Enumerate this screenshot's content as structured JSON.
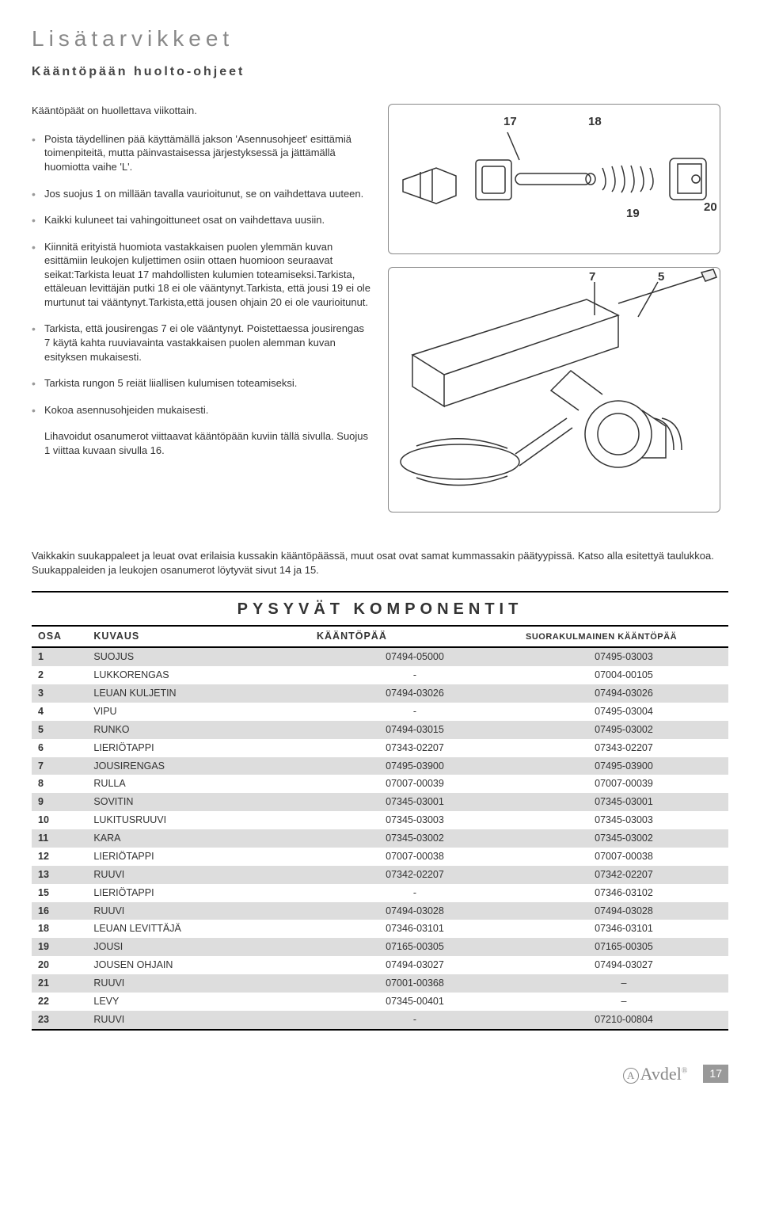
{
  "heading": "Lisätarvikkeet",
  "subheading": "Kääntöpään huolto-ohjeet",
  "intro": "Kääntöpäät on huollettava viikottain.",
  "bullets": [
    "Poista täydellinen pää käyttämällä jakson 'Asennusohjeet' esittämiä toimenpiteitä, mutta päinvastaisessa järjestyksessä ja jättämällä huomiotta vaihe 'L'.",
    "Jos suojus 1 on millään tavalla vaurioitunut, se on vaihdettava uuteen.",
    "Kaikki kuluneet tai vahingoittuneet osat on vaihdettava uusiin.",
    "Kiinnitä erityistä huomiota vastakkaisen puolen ylemmän kuvan esittämiin leukojen kuljettimen osiin ottaen huomioon seuraavat seikat:Tarkista leuat 17 mahdollisten kulumien toteamiseksi.Tarkista, ettäleuan levittäjän putki 18 ei ole vääntynyt.Tarkista, että jousi 19 ei ole murtunut tai vääntynyt.Tarkista,että jousen ohjain 20 ei ole vaurioitunut.",
    "Tarkista, että jousirengas 7 ei ole vääntynyt. Poistettaessa jousirengas 7 käytä kahta ruuviavainta vastakkaisen puolen alemman kuvan esityksen mukaisesti.",
    "Tarkista rungon 5 reiät liiallisen kulumisen toteamiseksi.",
    "Kokoa asennusohjeiden mukaisesti."
  ],
  "note": "Lihavoidut osanumerot viittaavat kääntöpään kuviin tällä sivulla. Suojus 1 viittaa kuvaan sivulla 16.",
  "below_text": "Vaikkakin suukappaleet ja leuat ovat erilaisia kussakin kääntöpäässä, muut osat ovat samat kummassakin päätyypissä. Katso alla esitettyä taulukkoa. Suukappaleiden ja leukojen osanumerot löytyvät sivut 14 ja 15.",
  "diagram1": {
    "l17": "17",
    "l18": "18",
    "l19": "19",
    "l20": "20"
  },
  "diagram2": {
    "l7": "7",
    "l5": "5"
  },
  "table": {
    "title": "PYSYVÄT KOMPONENTIT",
    "headers": {
      "osa": "OSA",
      "kuvaus": "KUVAUS",
      "a": "KÄÄNTÖPÄÄ",
      "b": "SUORAKULMAINEN KÄÄNTÖPÄÄ"
    },
    "rows": [
      {
        "osa": "1",
        "kuvaus": "SUOJUS",
        "a": "07494-05000",
        "b": "07495-03003"
      },
      {
        "osa": "2",
        "kuvaus": "LUKKORENGAS",
        "a": "-",
        "b": "07004-00105"
      },
      {
        "osa": "3",
        "kuvaus": "LEUAN KULJETIN",
        "a": "07494-03026",
        "b": "07494-03026"
      },
      {
        "osa": "4",
        "kuvaus": "VIPU",
        "a": "-",
        "b": "07495-03004"
      },
      {
        "osa": "5",
        "kuvaus": "RUNKO",
        "a": "07494-03015",
        "b": "07495-03002"
      },
      {
        "osa": "6",
        "kuvaus": "LIERIÖTAPPI",
        "a": "07343-02207",
        "b": "07343-02207"
      },
      {
        "osa": "7",
        "kuvaus": "JOUSIRENGAS",
        "a": "07495-03900",
        "b": "07495-03900"
      },
      {
        "osa": "8",
        "kuvaus": "RULLA",
        "a": "07007-00039",
        "b": "07007-00039"
      },
      {
        "osa": "9",
        "kuvaus": "SOVITIN",
        "a": "07345-03001",
        "b": "07345-03001"
      },
      {
        "osa": "10",
        "kuvaus": "LUKITUSRUUVI",
        "a": "07345-03003",
        "b": "07345-03003"
      },
      {
        "osa": "11",
        "kuvaus": "KARA",
        "a": "07345-03002",
        "b": "07345-03002"
      },
      {
        "osa": "12",
        "kuvaus": "LIERIÖTAPPI",
        "a": "07007-00038",
        "b": "07007-00038"
      },
      {
        "osa": "13",
        "kuvaus": "RUUVI",
        "a": "07342-02207",
        "b": "07342-02207"
      },
      {
        "osa": "15",
        "kuvaus": "LIERIÖTAPPI",
        "a": "-",
        "b": "07346-03102"
      },
      {
        "osa": "16",
        "kuvaus": "RUUVI",
        "a": "07494-03028",
        "b": "07494-03028"
      },
      {
        "osa": "18",
        "kuvaus": "LEUAN LEVITTÄJÄ",
        "a": "07346-03101",
        "b": "07346-03101"
      },
      {
        "osa": "19",
        "kuvaus": "JOUSI",
        "a": "07165-00305",
        "b": "07165-00305"
      },
      {
        "osa": "20",
        "kuvaus": "JOUSEN OHJAIN",
        "a": "07494-03027",
        "b": "07494-03027"
      },
      {
        "osa": "21",
        "kuvaus": "RUUVI",
        "a": "07001-00368",
        "b": "–"
      },
      {
        "osa": "22",
        "kuvaus": "LEVY",
        "a": "07345-00401",
        "b": "–"
      },
      {
        "osa": "23",
        "kuvaus": "RUUVI",
        "a": "-",
        "b": "07210-00804"
      }
    ]
  },
  "brand": "Avdel",
  "page_number": "17"
}
